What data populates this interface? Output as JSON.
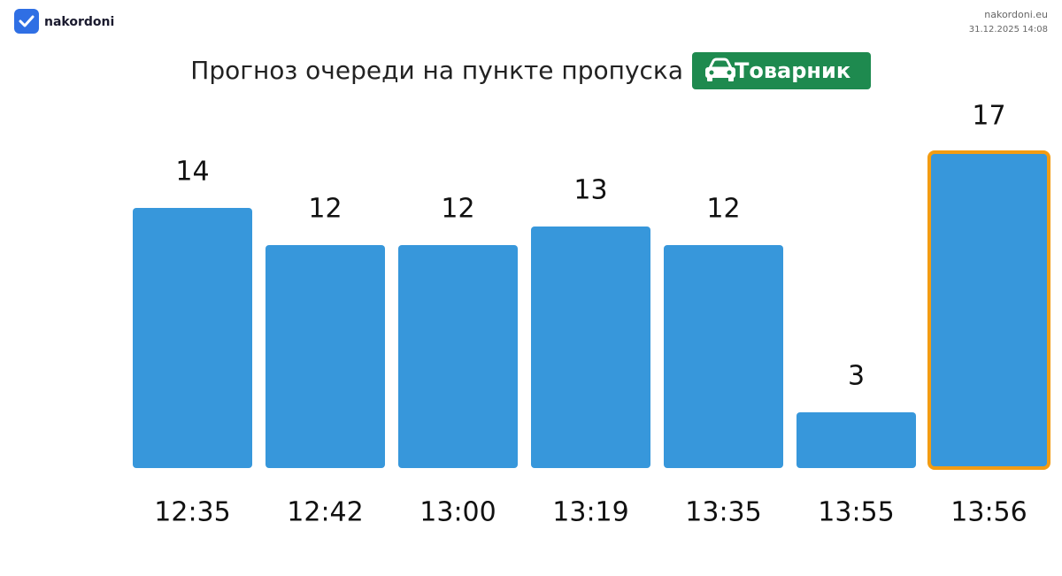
{
  "brand": "nakordoni",
  "site": "nakordoni.eu",
  "timestamp": "31.12.2025 14:08",
  "chart_data": {
    "type": "bar",
    "title": "Прогноз очереди на пункте пропуска",
    "badge": "Товарник",
    "badge_color": "#1e8a4f",
    "categories": [
      "12:35",
      "12:42",
      "13:00",
      "13:19",
      "13:35",
      "13:55",
      "13:56"
    ],
    "values": [
      14,
      12,
      12,
      13,
      12,
      3,
      17
    ],
    "color": "#3797db",
    "highlight": {
      "index": 6,
      "color": "#f39c12"
    }
  }
}
